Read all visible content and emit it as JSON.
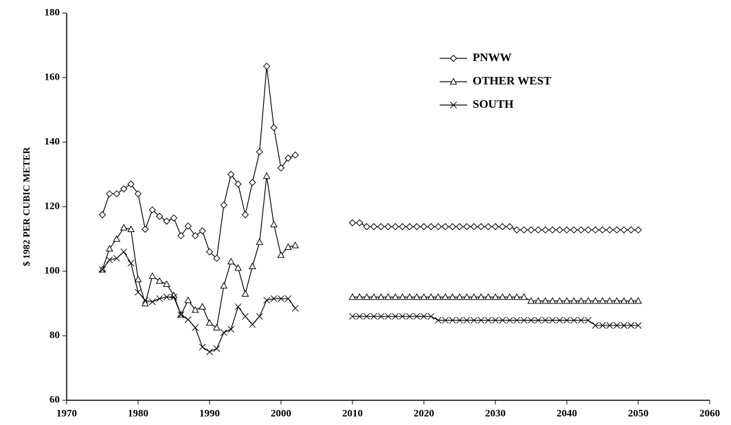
{
  "chart_data": {
    "type": "line",
    "y_label": "$ 1982 PER CUBIC METER",
    "x": [
      1975,
      1976,
      1977,
      1978,
      1979,
      1980,
      1981,
      1982,
      1983,
      1984,
      1985,
      1986,
      1987,
      1988,
      1989,
      1990,
      1991,
      1992,
      1993,
      1994,
      1995,
      1996,
      1997,
      1998,
      1999,
      2000,
      2001,
      2002,
      2003,
      2004,
      2005,
      2006,
      2007,
      2008,
      2009,
      2010,
      2011,
      2012,
      2013,
      2014,
      2015,
      2016,
      2017,
      2018,
      2019,
      2020,
      2021,
      2022,
      2023,
      2024,
      2025,
      2026,
      2027,
      2028,
      2029,
      2030,
      2031,
      2032,
      2033,
      2034,
      2035,
      2036,
      2037,
      2038,
      2039,
      2040,
      2041,
      2042,
      2043,
      2044,
      2045,
      2046,
      2047,
      2048,
      2049,
      2050
    ],
    "series": [
      {
        "name": "PNWW",
        "color": "#000000",
        "marker": "diamond",
        "values": [
          117.5,
          124,
          124,
          125.5,
          127,
          124,
          113,
          119,
          117,
          115.5,
          116.5,
          111,
          114,
          111,
          112.5,
          106,
          104,
          120.5,
          130,
          127,
          117.5,
          127.5,
          137,
          163.5,
          144.5,
          132,
          135,
          136,
          null,
          null,
          null,
          null,
          null,
          null,
          null,
          115,
          115,
          113.8,
          113.8,
          113.8,
          113.8,
          113.8,
          113.8,
          113.8,
          113.8,
          113.8,
          113.8,
          113.8,
          113.8,
          113.8,
          113.8,
          113.8,
          113.8,
          113.8,
          113.8,
          113.8,
          113.8,
          113.8,
          112.8,
          112.8,
          112.8,
          112.8,
          112.8,
          112.8,
          112.8,
          112.8,
          112.8,
          112.8,
          112.8,
          112.8,
          112.8,
          112.8,
          112.8,
          112.8,
          112.8,
          112.8
        ]
      },
      {
        "name": "OTHER WEST",
        "color": "#000000",
        "marker": "triangle",
        "values": [
          100.5,
          107,
          110,
          113.5,
          113,
          97.5,
          90,
          98.5,
          97,
          96,
          92.5,
          86.5,
          91,
          88,
          89,
          84,
          82.5,
          95.5,
          103,
          101,
          93,
          101.5,
          109,
          129.5,
          114.5,
          105,
          107.5,
          108,
          null,
          null,
          null,
          null,
          null,
          null,
          null,
          92,
          92,
          92,
          92,
          92,
          92,
          92,
          92,
          92,
          92,
          92,
          92,
          92,
          92,
          92,
          92,
          92,
          92,
          92,
          92,
          92,
          92,
          92,
          92,
          92,
          90.8,
          90.8,
          90.8,
          90.8,
          90.8,
          90.8,
          90.8,
          90.8,
          90.8,
          90.8,
          90.8,
          90.8,
          90.8,
          90.8,
          90.8,
          90.8
        ]
      },
      {
        "name": "SOUTH",
        "color": "#000000",
        "marker": "x",
        "values": [
          100.5,
          103.5,
          104,
          106,
          102.5,
          93.5,
          91,
          90.5,
          91.5,
          92,
          92,
          86.5,
          85,
          82.5,
          76.5,
          75,
          76,
          81,
          82,
          89,
          86,
          83.5,
          86,
          91,
          91.5,
          91.5,
          91.5,
          88.5,
          null,
          null,
          null,
          null,
          null,
          null,
          null,
          86,
          86,
          86,
          86,
          86,
          86,
          86,
          86,
          86,
          86,
          86,
          86,
          84.8,
          84.8,
          84.8,
          84.8,
          84.8,
          84.8,
          84.8,
          84.8,
          84.8,
          84.8,
          84.8,
          84.8,
          84.8,
          84.8,
          84.8,
          84.8,
          84.8,
          84.8,
          84.8,
          84.8,
          84.8,
          84.8,
          83.2,
          83.2,
          83.2,
          83.2,
          83.2,
          83.2,
          83.2
        ]
      }
    ],
    "xlim": [
      1970,
      2060
    ],
    "xticks": [
      1970,
      1980,
      1990,
      2000,
      2010,
      2020,
      2030,
      2040,
      2050,
      2060
    ],
    "ylim": [
      60,
      180
    ],
    "yticks": [
      60,
      80,
      100,
      120,
      140,
      160,
      180
    ],
    "grid": false,
    "legend": "upper right"
  }
}
